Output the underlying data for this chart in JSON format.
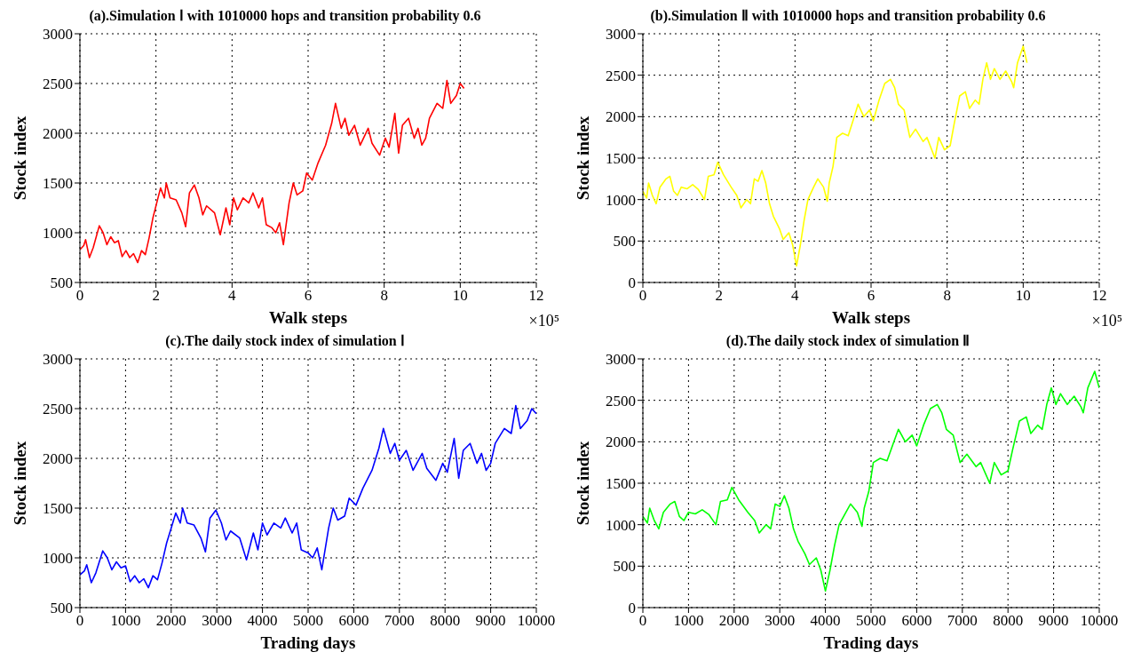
{
  "chart_data": [
    {
      "type": "line",
      "title": "(a).Simulation Ⅰ with 1010000 hops and transition probability 0.6",
      "xlabel": "Walk steps",
      "ylabel": "Stock index",
      "annotations": [
        "×10⁵"
      ],
      "xlim": [
        0,
        12
      ],
      "xticks": [
        0,
        2,
        4,
        6,
        8,
        10,
        12
      ],
      "ylim": [
        500,
        3000
      ],
      "yticks": [
        500,
        1000,
        1500,
        2000,
        2500,
        3000
      ],
      "grid": true,
      "x": [
        0,
        0.1,
        0.15,
        0.25,
        0.35,
        0.51,
        0.61,
        0.71,
        0.81,
        0.91,
        1.01,
        1.11,
        1.21,
        1.31,
        1.41,
        1.52,
        1.62,
        1.72,
        1.82,
        1.92,
        2.02,
        2.12,
        2.22,
        2.27,
        2.37,
        2.53,
        2.68,
        2.78,
        2.88,
        3.01,
        3.13,
        3.23,
        3.33,
        3.54,
        3.69,
        3.84,
        3.94,
        4.04,
        4.14,
        4.29,
        4.44,
        4.55,
        4.7,
        4.8,
        4.9,
        5.05,
        5.15,
        5.25,
        5.35,
        5.5,
        5.61,
        5.71,
        5.86,
        5.96,
        6.11,
        6.26,
        6.46,
        6.62,
        6.72,
        6.87,
        6.97,
        7.07,
        7.22,
        7.37,
        7.58,
        7.68,
        7.88,
        8.03,
        8.13,
        8.28,
        8.38,
        8.48,
        8.64,
        8.79,
        8.89,
        8.99,
        9.09,
        9.19,
        9.39,
        9.54,
        9.65,
        9.75,
        9.9,
        10,
        10.1
      ],
      "series": [
        {
          "color": "#ff0000",
          "values": [
            830,
            870,
            930,
            750,
            850,
            1070,
            1000,
            880,
            960,
            900,
            920,
            760,
            820,
            750,
            790,
            700,
            820,
            780,
            950,
            1150,
            1300,
            1450,
            1350,
            1500,
            1350,
            1330,
            1200,
            1060,
            1400,
            1480,
            1350,
            1180,
            1270,
            1200,
            980,
            1250,
            1080,
            1350,
            1230,
            1350,
            1300,
            1400,
            1250,
            1350,
            1080,
            1050,
            1000,
            1100,
            880,
            1300,
            1500,
            1380,
            1420,
            1600,
            1530,
            1700,
            1880,
            2100,
            2300,
            2050,
            2150,
            1980,
            2080,
            1880,
            2050,
            1900,
            1780,
            1950,
            1860,
            2200,
            1800,
            2080,
            2150,
            1950,
            2050,
            1880,
            1950,
            2150,
            2300,
            2250,
            2530,
            2300,
            2380,
            2500,
            2450
          ]
        }
      ]
    },
    {
      "type": "line",
      "title": "(b).Simulation Ⅱ with 1010000 hops and transition probability 0.6",
      "xlabel": "Walk steps",
      "ylabel": "Stock index",
      "annotations": [
        "×10⁵"
      ],
      "xlim": [
        0,
        12
      ],
      "xticks": [
        0,
        2,
        4,
        6,
        8,
        10,
        12
      ],
      "ylim": [
        0,
        3000
      ],
      "yticks": [
        0,
        500,
        1000,
        1500,
        2000,
        2500,
        3000
      ],
      "grid": true,
      "x": [
        0,
        0.1,
        0.15,
        0.25,
        0.35,
        0.45,
        0.61,
        0.71,
        0.81,
        0.91,
        1.01,
        1.16,
        1.31,
        1.46,
        1.62,
        1.72,
        1.87,
        1.97,
        2.12,
        2.32,
        2.47,
        2.58,
        2.73,
        2.83,
        2.93,
        3.03,
        3.13,
        3.23,
        3.33,
        3.43,
        3.59,
        3.69,
        3.84,
        3.94,
        4.04,
        4.14,
        4.24,
        4.34,
        4.49,
        4.6,
        4.75,
        4.85,
        4.9,
        5,
        5.1,
        5.25,
        5.4,
        5.56,
        5.66,
        5.81,
        5.96,
        6.06,
        6.21,
        6.36,
        6.51,
        6.62,
        6.72,
        6.87,
        7.02,
        7.17,
        7.37,
        7.47,
        7.68,
        7.78,
        7.93,
        8.08,
        8.18,
        8.33,
        8.48,
        8.59,
        8.74,
        8.84,
        8.94,
        9.04,
        9.14,
        9.24,
        9.39,
        9.54,
        9.7,
        9.75,
        9.85,
        10,
        10.1
      ],
      "series": [
        {
          "color": "#ffff00",
          "values": [
            1100,
            1020,
            1200,
            1050,
            950,
            1150,
            1250,
            1280,
            1100,
            1050,
            1150,
            1130,
            1180,
            1120,
            1000,
            1280,
            1300,
            1450,
            1300,
            1150,
            1050,
            900,
            1000,
            950,
            1250,
            1220,
            1350,
            1200,
            950,
            800,
            650,
            520,
            600,
            450,
            200,
            450,
            750,
            1000,
            1150,
            1250,
            1150,
            980,
            1200,
            1400,
            1750,
            1800,
            1770,
            2000,
            2150,
            2000,
            2080,
            1950,
            2200,
            2400,
            2450,
            2350,
            2150,
            2080,
            1750,
            1850,
            1700,
            1750,
            1500,
            1750,
            1600,
            1650,
            1900,
            2250,
            2300,
            2100,
            2200,
            2150,
            2450,
            2650,
            2450,
            2580,
            2450,
            2550,
            2420,
            2350,
            2650,
            2850,
            2650
          ]
        }
      ]
    },
    {
      "type": "line",
      "title": "(c).The daily stock index of simulation Ⅰ",
      "xlabel": "Trading days",
      "ylabel": "Stock index",
      "xlim": [
        0,
        10000
      ],
      "xticks": [
        0,
        1000,
        2000,
        3000,
        4000,
        5000,
        6000,
        7000,
        8000,
        9000,
        10000
      ],
      "ylim": [
        500,
        3000
      ],
      "yticks": [
        500,
        1000,
        1500,
        2000,
        2500,
        3000
      ],
      "grid": true,
      "x": [
        0,
        100,
        150,
        250,
        350,
        500,
        600,
        700,
        800,
        900,
        1000,
        1100,
        1200,
        1300,
        1400,
        1500,
        1600,
        1700,
        1800,
        1900,
        2000,
        2100,
        2200,
        2250,
        2350,
        2500,
        2650,
        2750,
        2850,
        2980,
        3100,
        3200,
        3300,
        3500,
        3650,
        3800,
        3900,
        4000,
        4100,
        4250,
        4400,
        4500,
        4650,
        4750,
        4850,
        5000,
        5100,
        5200,
        5300,
        5450,
        5550,
        5650,
        5800,
        5900,
        6050,
        6200,
        6400,
        6550,
        6650,
        6800,
        6900,
        7000,
        7150,
        7300,
        7500,
        7600,
        7800,
        7950,
        8050,
        8200,
        8300,
        8400,
        8550,
        8700,
        8800,
        8900,
        9000,
        9100,
        9300,
        9450,
        9550,
        9650,
        9800,
        9900,
        10000
      ],
      "series": [
        {
          "color": "#0000ff",
          "values": [
            830,
            870,
            930,
            750,
            850,
            1070,
            1000,
            880,
            960,
            900,
            920,
            760,
            820,
            750,
            790,
            700,
            820,
            780,
            950,
            1150,
            1300,
            1450,
            1350,
            1500,
            1350,
            1330,
            1200,
            1060,
            1400,
            1480,
            1350,
            1180,
            1270,
            1200,
            980,
            1250,
            1080,
            1350,
            1230,
            1350,
            1300,
            1400,
            1250,
            1350,
            1080,
            1050,
            1000,
            1100,
            880,
            1300,
            1500,
            1380,
            1420,
            1600,
            1530,
            1700,
            1880,
            2100,
            2300,
            2050,
            2150,
            1980,
            2080,
            1880,
            2050,
            1900,
            1780,
            1950,
            1860,
            2200,
            1800,
            2080,
            2150,
            1950,
            2050,
            1880,
            1950,
            2150,
            2300,
            2250,
            2530,
            2300,
            2380,
            2500,
            2450
          ]
        }
      ]
    },
    {
      "type": "line",
      "title": "(d).The daily stock index of simulation Ⅱ",
      "xlabel": "Trading days",
      "ylabel": "Stock index",
      "xlim": [
        0,
        10000
      ],
      "xticks": [
        0,
        1000,
        2000,
        3000,
        4000,
        5000,
        6000,
        7000,
        8000,
        9000,
        10000
      ],
      "ylim": [
        0,
        3000
      ],
      "yticks": [
        0,
        500,
        1000,
        1500,
        2000,
        2500,
        3000
      ],
      "grid": true,
      "x": [
        0,
        100,
        150,
        250,
        350,
        450,
        600,
        700,
        800,
        900,
        1000,
        1150,
        1300,
        1450,
        1600,
        1700,
        1850,
        1950,
        2100,
        2300,
        2450,
        2550,
        2700,
        2800,
        2900,
        3000,
        3100,
        3200,
        3300,
        3400,
        3550,
        3650,
        3800,
        3900,
        4000,
        4100,
        4200,
        4300,
        4450,
        4550,
        4700,
        4800,
        4850,
        4950,
        5050,
        5200,
        5350,
        5500,
        5600,
        5750,
        5900,
        6000,
        6150,
        6300,
        6450,
        6550,
        6650,
        6800,
        6950,
        7100,
        7300,
        7400,
        7600,
        7700,
        7850,
        8000,
        8100,
        8250,
        8400,
        8500,
        8650,
        8750,
        8850,
        8950,
        9050,
        9150,
        9300,
        9450,
        9600,
        9650,
        9750,
        9900,
        10000
      ],
      "series": [
        {
          "color": "#00ff00",
          "values": [
            1100,
            1020,
            1200,
            1050,
            950,
            1150,
            1250,
            1280,
            1100,
            1050,
            1150,
            1130,
            1180,
            1120,
            1000,
            1280,
            1300,
            1450,
            1300,
            1150,
            1050,
            900,
            1000,
            950,
            1250,
            1220,
            1350,
            1200,
            950,
            800,
            650,
            520,
            600,
            450,
            200,
            450,
            750,
            1000,
            1150,
            1250,
            1150,
            980,
            1200,
            1400,
            1750,
            1800,
            1770,
            2000,
            2150,
            2000,
            2080,
            1950,
            2200,
            2400,
            2450,
            2350,
            2150,
            2080,
            1750,
            1850,
            1700,
            1750,
            1500,
            1750,
            1600,
            1650,
            1900,
            2250,
            2300,
            2100,
            2200,
            2150,
            2450,
            2650,
            2450,
            2580,
            2450,
            2550,
            2420,
            2350,
            2650,
            2850,
            2650
          ]
        }
      ]
    }
  ]
}
